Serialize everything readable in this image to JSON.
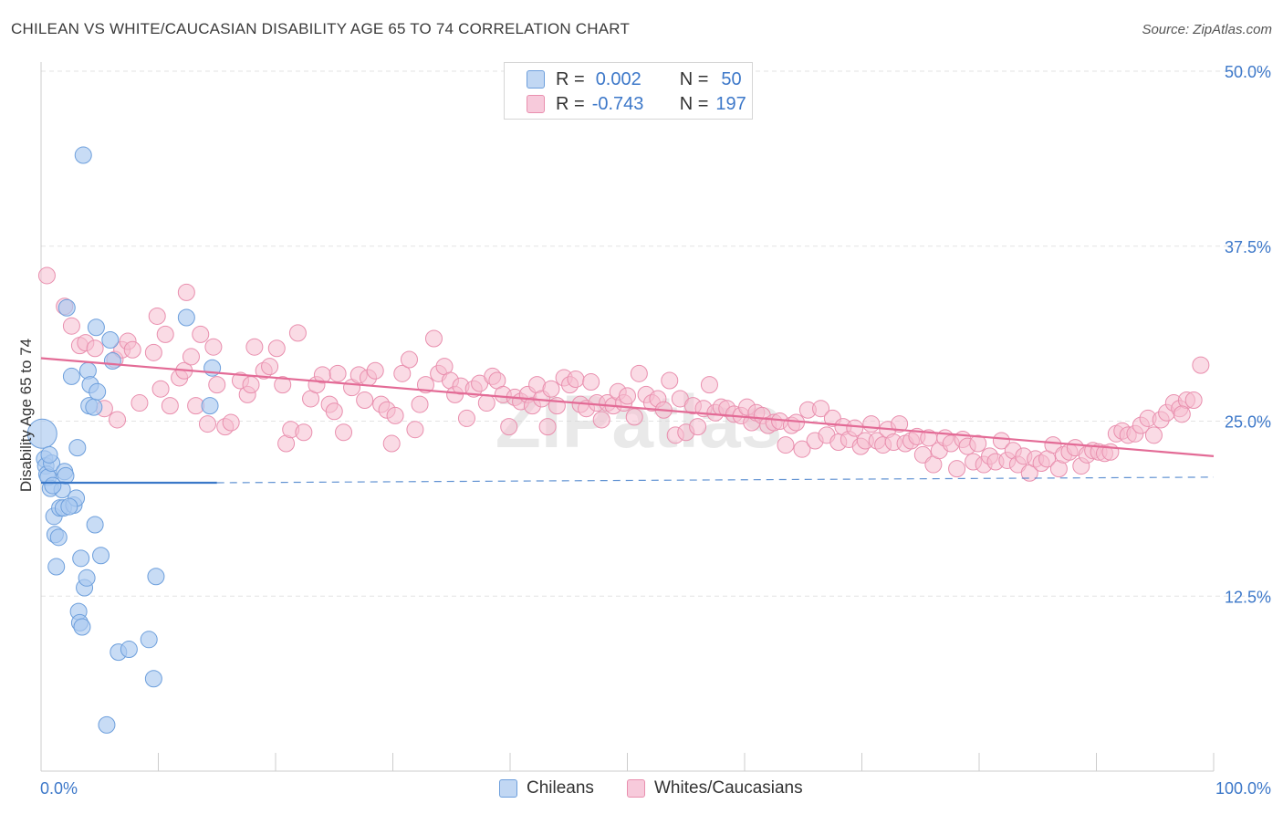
{
  "title": "CHILEAN VS WHITE/CAUCASIAN DISABILITY AGE 65 TO 74 CORRELATION CHART",
  "source": "Source: ZipAtlas.com",
  "watermark": "ZIPatlas",
  "legend": {
    "rows": [
      {
        "r_label": "R =",
        "r_value": "0.002",
        "n_label": "N =",
        "n_value": "50"
      },
      {
        "r_label": "R =",
        "r_value": "-0.743",
        "n_label": "N =",
        "n_value": "197"
      }
    ]
  },
  "bottom_legend": {
    "series1": "Chileans",
    "series2": "Whites/Caucasians"
  },
  "colors": {
    "blue_fill": "#aac9ef",
    "blue_stroke": "#6d9fdc",
    "blue_line": "#3a78c8",
    "pink_fill": "#f5bdd0",
    "pink_stroke": "#e98fae",
    "pink_line": "#e36b96",
    "tick_label": "#3d78c9",
    "grid": "#e3e3e3"
  },
  "chart_data": {
    "type": "scatter",
    "title": "CHILEAN VS WHITE/CAUCASIAN DISABILITY AGE 65 TO 74 CORRELATION CHART",
    "xlabel": "",
    "ylabel": "Disability Age 65 to 74",
    "xlim": [
      0,
      100
    ],
    "ylim": [
      0,
      50
    ],
    "x_tick_labels": [
      "0.0%",
      "100.0%"
    ],
    "y_tick_labels": [
      "12.5%",
      "25.0%",
      "37.5%",
      "50.0%"
    ],
    "y_ticks": [
      12.5,
      25.0,
      37.5,
      50.0
    ],
    "grid": true,
    "legend_position": "top-center",
    "series": [
      {
        "name": "Chileans",
        "R": 0.002,
        "N": 50,
        "trend": {
          "x": [
            0,
            15
          ],
          "y": [
            20.6,
            20.6
          ],
          "dashed_to": [
            100,
            21.0
          ]
        },
        "points": [
          [
            0.1,
            24.1
          ],
          [
            0.3,
            22.3
          ],
          [
            0.4,
            21.8
          ],
          [
            0.5,
            21.2
          ],
          [
            0.6,
            21.0
          ],
          [
            0.8,
            20.2
          ],
          [
            0.9,
            22.0
          ],
          [
            1.1,
            18.2
          ],
          [
            1.2,
            16.9
          ],
          [
            1.3,
            14.6
          ],
          [
            1.5,
            16.7
          ],
          [
            1.6,
            18.8
          ],
          [
            1.8,
            20.1
          ],
          [
            1.9,
            18.8
          ],
          [
            2.0,
            21.4
          ],
          [
            2.1,
            21.1
          ],
          [
            2.2,
            33.1
          ],
          [
            2.6,
            28.2
          ],
          [
            2.8,
            19.0
          ],
          [
            3.0,
            19.5
          ],
          [
            3.1,
            23.1
          ],
          [
            3.2,
            11.4
          ],
          [
            3.3,
            10.6
          ],
          [
            3.4,
            15.2
          ],
          [
            3.5,
            10.3
          ],
          [
            3.7,
            13.1
          ],
          [
            3.9,
            13.8
          ],
          [
            4.0,
            28.6
          ],
          [
            4.1,
            26.1
          ],
          [
            4.2,
            27.6
          ],
          [
            4.5,
            26.0
          ],
          [
            4.6,
            17.6
          ],
          [
            4.7,
            31.7
          ],
          [
            4.8,
            27.1
          ],
          [
            5.1,
            15.4
          ],
          [
            5.6,
            3.3
          ],
          [
            5.9,
            30.8
          ],
          [
            6.1,
            29.3
          ],
          [
            6.6,
            8.5
          ],
          [
            7.5,
            8.7
          ],
          [
            9.2,
            9.4
          ],
          [
            9.6,
            6.6
          ],
          [
            9.8,
            13.9
          ],
          [
            12.4,
            32.4
          ],
          [
            14.4,
            26.1
          ],
          [
            14.6,
            28.8
          ],
          [
            3.6,
            44.0
          ],
          [
            1.0,
            20.4
          ],
          [
            2.4,
            18.9
          ],
          [
            0.7,
            22.6
          ]
        ]
      },
      {
        "name": "Whites/Caucasians",
        "R": -0.743,
        "N": 197,
        "trend": {
          "x": [
            0,
            100
          ],
          "y": [
            29.5,
            22.5
          ]
        },
        "points": [
          [
            0.5,
            35.4
          ],
          [
            2.0,
            33.2
          ],
          [
            2.6,
            31.8
          ],
          [
            3.3,
            30.4
          ],
          [
            3.8,
            30.6
          ],
          [
            4.6,
            30.2
          ],
          [
            5.4,
            25.9
          ],
          [
            6.3,
            29.4
          ],
          [
            6.5,
            25.1
          ],
          [
            6.9,
            30.1
          ],
          [
            7.4,
            30.7
          ],
          [
            7.8,
            30.1
          ],
          [
            8.4,
            26.3
          ],
          [
            9.6,
            29.9
          ],
          [
            9.9,
            32.5
          ],
          [
            10.2,
            27.3
          ],
          [
            10.6,
            31.2
          ],
          [
            11.0,
            26.1
          ],
          [
            11.8,
            28.1
          ],
          [
            12.2,
            28.6
          ],
          [
            12.4,
            34.2
          ],
          [
            12.8,
            29.6
          ],
          [
            13.2,
            26.1
          ],
          [
            13.6,
            31.2
          ],
          [
            14.2,
            24.8
          ],
          [
            14.7,
            30.3
          ],
          [
            15.0,
            27.6
          ],
          [
            15.7,
            24.6
          ],
          [
            16.2,
            24.9
          ],
          [
            17.0,
            27.9
          ],
          [
            17.6,
            26.9
          ],
          [
            17.9,
            27.6
          ],
          [
            18.2,
            30.3
          ],
          [
            19.0,
            28.6
          ],
          [
            19.5,
            28.9
          ],
          [
            20.1,
            30.2
          ],
          [
            20.6,
            27.6
          ],
          [
            20.9,
            23.4
          ],
          [
            21.3,
            24.4
          ],
          [
            21.9,
            31.3
          ],
          [
            22.4,
            24.2
          ],
          [
            23.0,
            26.6
          ],
          [
            23.5,
            27.6
          ],
          [
            24.0,
            28.3
          ],
          [
            24.6,
            26.2
          ],
          [
            25.0,
            25.7
          ],
          [
            25.3,
            28.4
          ],
          [
            25.8,
            24.2
          ],
          [
            26.5,
            27.4
          ],
          [
            27.1,
            28.3
          ],
          [
            27.6,
            26.5
          ],
          [
            27.9,
            28.1
          ],
          [
            28.5,
            28.6
          ],
          [
            29.0,
            26.2
          ],
          [
            29.5,
            25.8
          ],
          [
            29.9,
            23.4
          ],
          [
            30.2,
            25.4
          ],
          [
            30.8,
            28.4
          ],
          [
            31.4,
            29.4
          ],
          [
            31.9,
            24.4
          ],
          [
            32.3,
            26.2
          ],
          [
            32.8,
            27.6
          ],
          [
            33.5,
            30.9
          ],
          [
            33.9,
            28.4
          ],
          [
            34.4,
            28.9
          ],
          [
            34.9,
            27.9
          ],
          [
            35.3,
            26.9
          ],
          [
            35.8,
            27.5
          ],
          [
            36.3,
            25.2
          ],
          [
            36.9,
            27.3
          ],
          [
            37.4,
            27.7
          ],
          [
            38.0,
            26.3
          ],
          [
            38.5,
            28.2
          ],
          [
            38.9,
            27.9
          ],
          [
            39.4,
            26.9
          ],
          [
            39.9,
            24.6
          ],
          [
            40.4,
            26.7
          ],
          [
            40.9,
            26.4
          ],
          [
            41.5,
            26.9
          ],
          [
            41.9,
            26.1
          ],
          [
            42.3,
            27.6
          ],
          [
            42.7,
            26.6
          ],
          [
            43.2,
            24.6
          ],
          [
            43.5,
            27.3
          ],
          [
            44.0,
            26.1
          ],
          [
            44.6,
            28.1
          ],
          [
            45.1,
            27.6
          ],
          [
            45.6,
            28.0
          ],
          [
            46.0,
            26.2
          ],
          [
            46.5,
            25.9
          ],
          [
            46.9,
            27.8
          ],
          [
            47.4,
            26.3
          ],
          [
            47.8,
            25.1
          ],
          [
            48.3,
            26.3
          ],
          [
            48.8,
            26.1
          ],
          [
            49.2,
            27.1
          ],
          [
            49.7,
            26.3
          ],
          [
            50.0,
            26.8
          ],
          [
            50.6,
            25.3
          ],
          [
            51.0,
            28.4
          ],
          [
            51.6,
            26.9
          ],
          [
            52.1,
            26.3
          ],
          [
            52.6,
            26.6
          ],
          [
            53.1,
            25.8
          ],
          [
            53.6,
            27.9
          ],
          [
            54.1,
            24.0
          ],
          [
            54.5,
            26.6
          ],
          [
            55.0,
            24.2
          ],
          [
            55.6,
            26.1
          ],
          [
            56.0,
            24.6
          ],
          [
            56.5,
            25.9
          ],
          [
            57.0,
            27.6
          ],
          [
            57.5,
            25.6
          ],
          [
            58.0,
            26.0
          ],
          [
            58.5,
            25.9
          ],
          [
            59.1,
            25.5
          ],
          [
            59.7,
            25.4
          ],
          [
            60.2,
            26.0
          ],
          [
            60.6,
            24.9
          ],
          [
            61.0,
            25.6
          ],
          [
            61.5,
            25.4
          ],
          [
            62.0,
            24.7
          ],
          [
            62.5,
            24.9
          ],
          [
            63.0,
            25.0
          ],
          [
            63.5,
            23.3
          ],
          [
            64.0,
            24.7
          ],
          [
            64.4,
            24.9
          ],
          [
            64.9,
            23.0
          ],
          [
            65.4,
            25.8
          ],
          [
            66.0,
            23.6
          ],
          [
            66.5,
            25.9
          ],
          [
            67.0,
            24.0
          ],
          [
            67.5,
            25.2
          ],
          [
            68.0,
            23.5
          ],
          [
            68.4,
            24.6
          ],
          [
            68.9,
            23.7
          ],
          [
            69.4,
            24.5
          ],
          [
            69.9,
            23.2
          ],
          [
            70.3,
            23.6
          ],
          [
            70.8,
            24.8
          ],
          [
            71.3,
            23.6
          ],
          [
            71.8,
            23.3
          ],
          [
            72.2,
            24.4
          ],
          [
            72.7,
            23.5
          ],
          [
            73.2,
            24.8
          ],
          [
            73.7,
            23.4
          ],
          [
            74.2,
            23.6
          ],
          [
            74.7,
            23.9
          ],
          [
            75.2,
            22.6
          ],
          [
            75.7,
            23.8
          ],
          [
            76.1,
            21.9
          ],
          [
            76.6,
            22.9
          ],
          [
            77.1,
            23.8
          ],
          [
            77.6,
            23.4
          ],
          [
            78.1,
            21.6
          ],
          [
            78.6,
            23.7
          ],
          [
            79.0,
            23.2
          ],
          [
            79.5,
            22.1
          ],
          [
            79.9,
            23.4
          ],
          [
            80.4,
            21.9
          ],
          [
            80.9,
            22.5
          ],
          [
            81.4,
            22.1
          ],
          [
            81.9,
            23.6
          ],
          [
            82.4,
            22.2
          ],
          [
            82.9,
            22.9
          ],
          [
            83.3,
            21.9
          ],
          [
            83.8,
            22.5
          ],
          [
            84.3,
            21.3
          ],
          [
            84.8,
            22.3
          ],
          [
            85.3,
            22.0
          ],
          [
            85.8,
            22.3
          ],
          [
            86.3,
            23.3
          ],
          [
            86.8,
            21.6
          ],
          [
            87.2,
            22.6
          ],
          [
            87.7,
            22.8
          ],
          [
            88.2,
            23.1
          ],
          [
            88.7,
            21.8
          ],
          [
            89.2,
            22.6
          ],
          [
            89.7,
            22.9
          ],
          [
            90.2,
            22.8
          ],
          [
            90.7,
            22.7
          ],
          [
            91.2,
            22.8
          ],
          [
            91.7,
            24.1
          ],
          [
            92.2,
            24.3
          ],
          [
            92.7,
            24.0
          ],
          [
            93.3,
            24.1
          ],
          [
            93.8,
            24.7
          ],
          [
            94.4,
            25.2
          ],
          [
            94.9,
            24.0
          ],
          [
            95.5,
            25.1
          ],
          [
            96.0,
            25.6
          ],
          [
            96.6,
            26.3
          ],
          [
            97.1,
            25.9
          ],
          [
            97.7,
            26.5
          ],
          [
            98.3,
            26.5
          ],
          [
            98.9,
            29.0
          ],
          [
            97.3,
            25.5
          ]
        ]
      }
    ]
  }
}
